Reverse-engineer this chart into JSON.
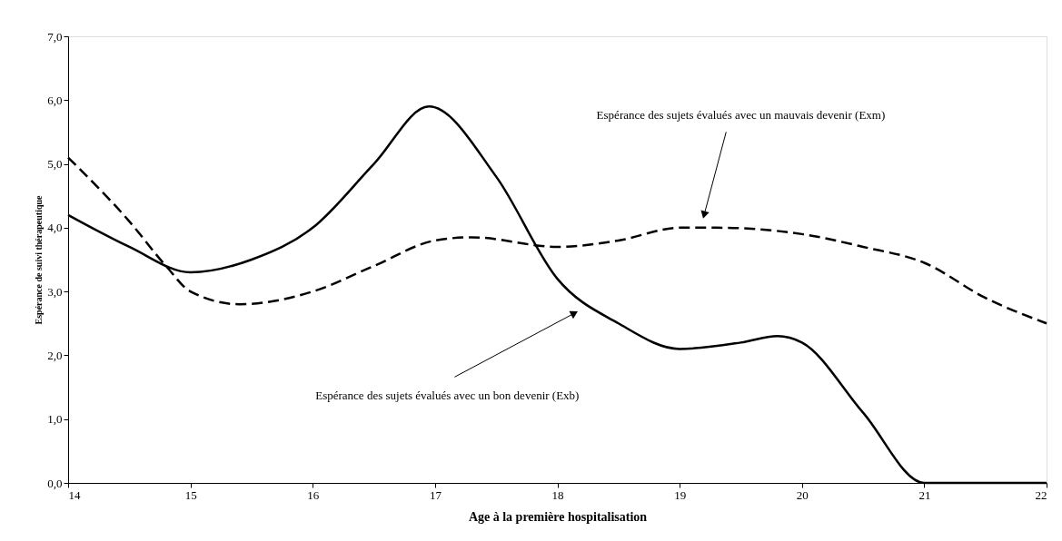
{
  "chart_data": {
    "type": "line",
    "xlabel": "Age à la première hospitalisation",
    "ylabel": "Espérance de suivi thérapeutique",
    "xlim": [
      14,
      22
    ],
    "xticks": [
      14,
      15,
      16,
      17,
      18,
      19,
      20,
      21,
      22
    ],
    "ylim": [
      0,
      7
    ],
    "yticks": [
      {
        "value": 0,
        "label": "0,0"
      },
      {
        "value": 1,
        "label": "1,0"
      },
      {
        "value": 2,
        "label": "2,0"
      },
      {
        "value": 3,
        "label": "3,0"
      },
      {
        "value": 4,
        "label": "4,0"
      },
      {
        "value": 5,
        "label": "5,0"
      },
      {
        "value": 6,
        "label": "6,0"
      },
      {
        "value": 7,
        "label": "7,0"
      }
    ],
    "grid": false,
    "marker": "none",
    "series": [
      {
        "color": "#000000",
        "line_style": "solid",
        "x": [
          14,
          14.5,
          15,
          15.5,
          16,
          16.5,
          16.95,
          17.5,
          18,
          18.5,
          19,
          19.5,
          19.8,
          20,
          20.5,
          21,
          22
        ],
        "values": [
          4.2,
          3.7,
          3.3,
          3.5,
          4.0,
          5.0,
          5.9,
          4.8,
          3.2,
          2.5,
          2.1,
          2.2,
          2.3,
          2.2,
          1.1,
          0,
          0
        ]
      },
      {
        "color": "#000000",
        "line_style": "dashed",
        "x": [
          14,
          14.5,
          14.8,
          15,
          15.4,
          16,
          16.5,
          17,
          17.3,
          18,
          18.5,
          19,
          19.3,
          20,
          20.5,
          21,
          21.5,
          22
        ],
        "values": [
          5.1,
          4.1,
          3.4,
          3.0,
          2.8,
          3.0,
          3.4,
          3.8,
          3.85,
          3.7,
          3.8,
          4.0,
          4.0,
          3.9,
          3.7,
          3.45,
          2.9,
          2.5
        ]
      }
    ],
    "annotations": [
      {
        "text": "Espérance des sujets évalués avec un mauvais devenir (Exm)",
        "x": 19.2,
        "y": 4.2
      },
      {
        "text": "Espérance des sujets évalués avec un bon devenir (Exb)",
        "x": 18.14,
        "y": 2.66
      }
    ]
  }
}
